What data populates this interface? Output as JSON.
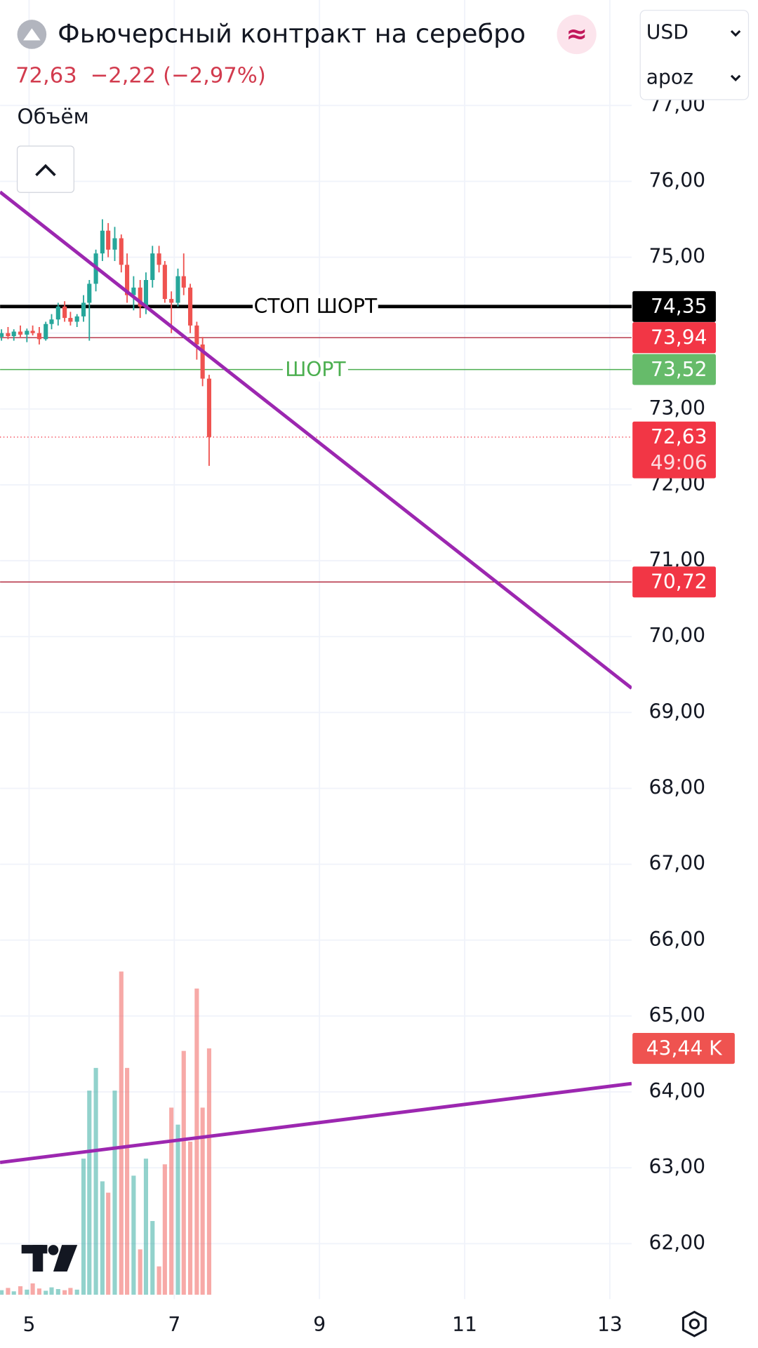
{
  "chart_data": {
    "type": "candlestick",
    "header": {
      "title": "Фьючерсный контракт на серебро",
      "symbol_badge": "≈",
      "price": "72,63",
      "change": "−2,22 (−2,97%)",
      "currency": "USD",
      "timeframe": "apoz",
      "volume_label": "Объём"
    },
    "x": [
      4.62,
      4.71,
      4.79,
      4.88,
      4.97,
      5.05,
      5.14,
      5.23,
      5.31,
      5.4,
      5.49,
      5.57,
      5.66,
      5.75,
      5.83,
      5.92,
      6.01,
      6.09,
      6.18,
      6.27,
      6.35,
      6.44,
      6.53,
      6.61,
      6.7,
      6.79,
      6.87,
      6.96,
      7.05,
      7.13,
      7.22,
      7.31,
      7.39,
      7.48
    ],
    "open": [
      73.95,
      74.0,
      73.96,
      74.02,
      73.98,
      74.03,
      74.0,
      73.92,
      74.12,
      74.18,
      74.35,
      74.2,
      74.15,
      74.22,
      74.4,
      74.65,
      75.05,
      75.35,
      75.1,
      75.25,
      74.9,
      74.5,
      74.6,
      74.35,
      74.7,
      75.05,
      74.9,
      74.45,
      74.4,
      74.75,
      74.6,
      74.1,
      73.85,
      73.4
    ],
    "high": [
      74.05,
      74.08,
      74.05,
      74.1,
      74.06,
      74.1,
      74.08,
      74.15,
      74.25,
      74.4,
      74.42,
      74.28,
      74.25,
      74.5,
      74.7,
      75.1,
      75.5,
      75.45,
      75.4,
      75.3,
      75.05,
      74.75,
      74.7,
      74.8,
      75.15,
      75.15,
      74.95,
      74.55,
      74.85,
      75.05,
      74.65,
      74.15,
      73.95,
      73.45
    ],
    "low": [
      73.9,
      73.92,
      73.9,
      73.95,
      73.88,
      73.97,
      73.85,
      73.9,
      74.05,
      74.1,
      74.15,
      74.1,
      74.08,
      74.15,
      73.9,
      74.55,
      74.95,
      75.0,
      74.95,
      74.8,
      74.4,
      74.3,
      74.2,
      74.25,
      74.6,
      74.8,
      74.4,
      74.0,
      74.35,
      74.5,
      74.0,
      73.65,
      73.3,
      72.25
    ],
    "close": [
      74.0,
      73.96,
      74.02,
      73.98,
      74.03,
      74.0,
      73.92,
      74.12,
      74.18,
      74.35,
      74.2,
      74.15,
      74.22,
      74.4,
      74.65,
      75.05,
      75.35,
      75.1,
      75.25,
      74.9,
      74.5,
      74.6,
      74.35,
      74.7,
      75.05,
      74.9,
      74.45,
      74.4,
      74.75,
      74.6,
      74.1,
      73.85,
      73.4,
      72.63
    ],
    "up_color": "#26a69a",
    "down_color": "#ef5350",
    "volume": {
      "values": [
        0.8,
        1.2,
        0.6,
        1.5,
        0.9,
        2.0,
        1.1,
        0.7,
        1.3,
        1.0,
        0.8,
        1.2,
        0.9,
        24,
        36,
        40,
        20,
        18,
        36,
        57,
        40,
        21,
        8,
        24,
        13,
        5,
        23,
        33,
        30,
        43,
        27,
        54,
        33,
        43.44
      ],
      "last_value_label": "43,44 K"
    },
    "levels": [
      {
        "value": 74.35,
        "label": "74,35",
        "text": "СТОП ШОРТ",
        "color": "#000000"
      },
      {
        "value": 73.94,
        "label": "73,94",
        "color": "#b22a3e"
      },
      {
        "value": 73.52,
        "label": "73,52",
        "text": "ШОРТ",
        "color": "#4caf50"
      },
      {
        "value": 70.72,
        "label": "70,72",
        "color": "#b22a3e"
      }
    ],
    "last_price": {
      "value": 72.63,
      "label": "72,63",
      "countdown": "49:06"
    },
    "trendlines": [
      {
        "color": "#9c27b0",
        "points": [
          [
            4.6,
            75.86
          ],
          [
            13.3,
            69.32
          ]
        ]
      },
      {
        "color": "#9c27b0",
        "points": [
          [
            4.6,
            63.07
          ],
          [
            13.3,
            64.11
          ]
        ]
      }
    ],
    "xlim": [
      4.6,
      13.3
    ],
    "xticks": [
      5,
      7,
      9,
      11,
      13
    ],
    "ylim": [
      61.27,
      78.39
    ],
    "yticks": [
      {
        "value": 77,
        "label": "77,00"
      },
      {
        "value": 76,
        "label": "76,00"
      },
      {
        "value": 75,
        "label": "75,00"
      },
      {
        "value": 74,
        "label": "74,00"
      },
      {
        "value": 73,
        "label": "73,00"
      },
      {
        "value": 72,
        "label": "72,00"
      },
      {
        "value": 71,
        "label": "71,00"
      },
      {
        "value": 70,
        "label": "70,00"
      },
      {
        "value": 69,
        "label": "69,00"
      },
      {
        "value": 68,
        "label": "68,00"
      },
      {
        "value": 67,
        "label": "67,00"
      },
      {
        "value": 66,
        "label": "66,00"
      },
      {
        "value": 65,
        "label": "65,00"
      },
      {
        "value": 64,
        "label": "64,00"
      },
      {
        "value": 63,
        "label": "63,00"
      },
      {
        "value": 62,
        "label": "62,00"
      }
    ],
    "grid": true
  }
}
